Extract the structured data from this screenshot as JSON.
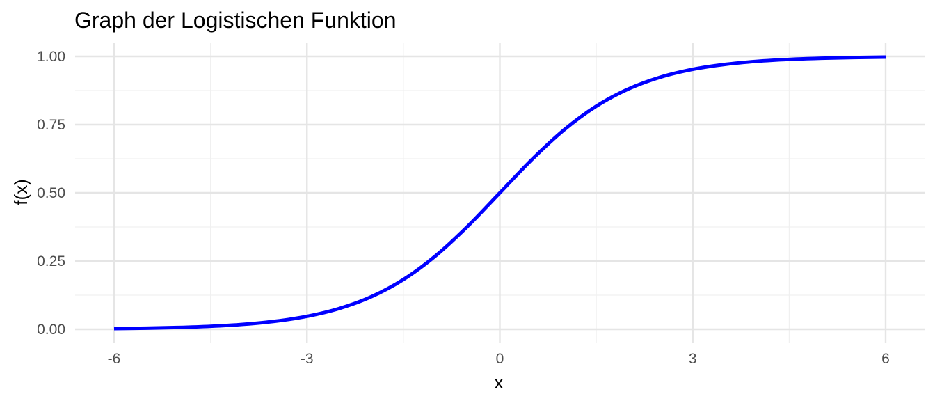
{
  "chart_data": {
    "type": "line",
    "title": "Graph der Logistischen Funktion",
    "xlabel": "x",
    "ylabel": "f(x)",
    "xlim": [
      -6,
      6
    ],
    "ylim": [
      0,
      1
    ],
    "x_ticks": [
      -6,
      -3,
      0,
      3,
      6
    ],
    "x_tick_labels": [
      "-6",
      "-3",
      "0",
      "3",
      "6"
    ],
    "y_ticks": [
      0,
      0.25,
      0.5,
      0.75,
      1
    ],
    "y_tick_labels": [
      "0.00",
      "0.25",
      "0.50",
      "0.75",
      "1.00"
    ],
    "grid": true,
    "legend": "none",
    "series": [
      {
        "color": "#0000ff",
        "x": [
          -6,
          -5.5,
          -5,
          -4.5,
          -4,
          -3.5,
          -3,
          -2.5,
          -2,
          -1.5,
          -1,
          -0.5,
          0,
          0.5,
          1,
          1.5,
          2,
          2.5,
          3,
          3.5,
          4,
          4.5,
          5,
          5.5,
          6
        ],
        "y": [
          0.0025,
          0.0041,
          0.0067,
          0.011,
          0.018,
          0.0293,
          0.0474,
          0.0759,
          0.1192,
          0.1824,
          0.2689,
          0.3775,
          0.5,
          0.6225,
          0.7311,
          0.8176,
          0.8808,
          0.9241,
          0.9526,
          0.9707,
          0.982,
          0.989,
          0.9933,
          0.9959,
          0.9975
        ]
      }
    ]
  }
}
